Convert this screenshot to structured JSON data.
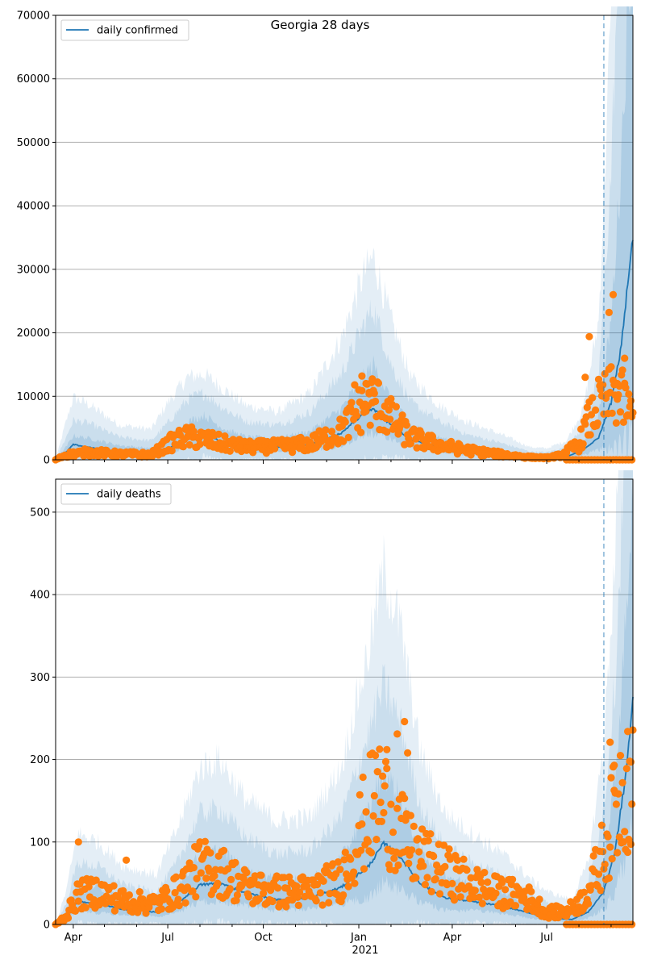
{
  "figure_title": "Georgia 28 days",
  "colors": {
    "model_line": "#1f77b4",
    "band": "#1f77b4",
    "observed": "#ff7f0e",
    "forecast_line": "#1f77b4",
    "grid": "#b0b0b0"
  },
  "chart_data": [
    {
      "type": "line",
      "legend": "daily confirmed",
      "legend_position": "top-left",
      "grid": "horizontal",
      "x_start": "2020-03-15",
      "x_end": "2021-09-22",
      "forecast_date": "2021-08-25",
      "ylim": [
        0,
        70000
      ],
      "yticks": [
        "0",
        "10000",
        "20000",
        "30000",
        "40000",
        "50000",
        "60000",
        "70000"
      ],
      "anchors": {
        "dates": [
          "2020-03-15",
          "2020-03-25",
          "2020-04-01",
          "2020-04-15",
          "2020-05-15",
          "2020-06-15",
          "2020-07-01",
          "2020-07-20",
          "2020-08-05",
          "2020-08-25",
          "2020-09-15",
          "2020-10-15",
          "2020-11-15",
          "2020-12-15",
          "2021-01-05",
          "2021-01-15",
          "2021-02-01",
          "2021-02-20",
          "2021-03-20",
          "2021-04-15",
          "2021-05-15",
          "2021-06-15",
          "2021-07-01",
          "2021-07-20",
          "2021-08-05",
          "2021-08-20",
          "2021-09-01",
          "2021-09-10",
          "2021-09-22"
        ],
        "median": [
          0,
          1200,
          2400,
          2000,
          1200,
          900,
          1800,
          3300,
          4000,
          2700,
          2100,
          2000,
          2400,
          4200,
          7200,
          8000,
          5500,
          3200,
          2000,
          1300,
          900,
          300,
          350,
          500,
          1500,
          3500,
          9000,
          17000,
          35000
        ],
        "band50": [
          0,
          2000,
          3800,
          3400,
          2300,
          1800,
          3400,
          6000,
          7000,
          4800,
          3600,
          3400,
          4500,
          8000,
          13000,
          15000,
          9500,
          5500,
          3500,
          2400,
          1600,
          700,
          700,
          1100,
          2800,
          7000,
          22000,
          45000,
          90000
        ],
        "band80": [
          0,
          3500,
          6200,
          5800,
          3600,
          3000,
          5800,
          9500,
          10500,
          8000,
          6000,
          5500,
          7500,
          13500,
          21000,
          24000,
          15000,
          9000,
          6000,
          4000,
          2800,
          1300,
          1200,
          2000,
          5000,
          13000,
          45000,
          90000,
          150000
        ],
        "band95": [
          0,
          6000,
          9800,
          8800,
          5500,
          4800,
          9000,
          13000,
          13500,
          11000,
          8500,
          7500,
          10500,
          19000,
          29000,
          32000,
          22000,
          13000,
          8500,
          6000,
          4200,
          2000,
          1800,
          3000,
          8000,
          22000,
          70000,
          150000,
          250000
        ]
      },
      "observed_anchors": {
        "dates": [
          "2020-03-15",
          "2020-03-25",
          "2020-04-15",
          "2020-05-15",
          "2020-06-15",
          "2020-07-05",
          "2020-07-20",
          "2020-08-05",
          "2020-08-25",
          "2020-09-15",
          "2020-10-15",
          "2020-11-15",
          "2020-12-15",
          "2021-01-05",
          "2021-01-15",
          "2021-02-01",
          "2021-02-20",
          "2021-03-20",
          "2021-04-15",
          "2021-05-15",
          "2021-06-15",
          "2021-07-01",
          "2021-07-15",
          "2021-08-01",
          "2021-08-10",
          "2021-08-20",
          "2021-09-01",
          "2021-09-10",
          "2021-09-22"
        ],
        "values": [
          0,
          800,
          1200,
          900,
          800,
          2800,
          3600,
          3200,
          2500,
          2000,
          2100,
          2500,
          4500,
          8500,
          9500,
          6500,
          3500,
          2300,
          1500,
          900,
          400,
          300,
          700,
          2500,
          6000,
          8500,
          10000,
          10000,
          6500
        ]
      },
      "spike_points": [
        [
          "2020-12-28",
          11800
        ],
        [
          "2021-01-04",
          13200
        ],
        [
          "2021-01-08",
          12000
        ],
        [
          "2021-01-11",
          10400
        ],
        [
          "2021-01-14",
          9000
        ],
        [
          "2021-08-07",
          13000
        ],
        [
          "2021-08-11",
          19400
        ],
        [
          "2021-08-30",
          23200
        ],
        [
          "2021-09-03",
          26000
        ],
        [
          "2021-09-07",
          12000
        ],
        [
          "2021-09-14",
          16000
        ]
      ],
      "zero_range": [
        "2021-07-20",
        "2021-09-22"
      ]
    },
    {
      "type": "line",
      "legend": "daily deaths",
      "legend_position": "top-left",
      "grid": "horizontal",
      "x_start": "2020-03-15",
      "x_end": "2021-09-22",
      "forecast_date": "2021-08-25",
      "ylim": [
        0,
        540
      ],
      "yticks": [
        "0",
        "100",
        "200",
        "300",
        "400",
        "500"
      ],
      "xticks": [
        "Apr",
        "Jul",
        "Oct",
        "Jan",
        "Apr",
        "Jul"
      ],
      "xtick_dates": [
        "2020-04-01",
        "2020-07-01",
        "2020-10-01",
        "2021-01-01",
        "2021-04-01",
        "2021-07-01"
      ],
      "xlabel_year": "2021",
      "anchors": {
        "dates": [
          "2020-03-15",
          "2020-03-25",
          "2020-04-05",
          "2020-04-25",
          "2020-05-20",
          "2020-06-20",
          "2020-07-10",
          "2020-08-01",
          "2020-08-20",
          "2020-09-15",
          "2020-10-15",
          "2020-11-15",
          "2020-12-15",
          "2021-01-10",
          "2021-01-25",
          "2021-02-10",
          "2021-03-01",
          "2021-03-25",
          "2021-04-20",
          "2021-05-20",
          "2021-06-20",
          "2021-07-05",
          "2021-07-25",
          "2021-08-10",
          "2021-08-25",
          "2021-09-05",
          "2021-09-15",
          "2021-09-22"
        ],
        "median": [
          0,
          8,
          28,
          25,
          18,
          15,
          25,
          48,
          50,
          38,
          30,
          32,
          45,
          70,
          98,
          82,
          50,
          32,
          28,
          22,
          12,
          8,
          6,
          15,
          40,
          90,
          180,
          270
        ],
        "band50": [
          0,
          15,
          48,
          45,
          30,
          25,
          45,
          85,
          90,
          65,
          55,
          55,
          80,
          140,
          185,
          155,
          90,
          60,
          48,
          38,
          22,
          15,
          12,
          28,
          80,
          180,
          360,
          540
        ],
        "band80": [
          0,
          25,
          75,
          70,
          48,
          40,
          75,
          135,
          140,
          105,
          85,
          90,
          130,
          230,
          290,
          245,
          145,
          95,
          75,
          60,
          35,
          25,
          20,
          50,
          140,
          300,
          600,
          900
        ],
        "band95": [
          0,
          40,
          110,
          100,
          70,
          60,
          115,
          190,
          200,
          150,
          125,
          130,
          190,
          330,
          430,
          360,
          210,
          135,
          110,
          85,
          50,
          38,
          30,
          75,
          220,
          450,
          900,
          1300
        ]
      },
      "observed_anchors": {
        "dates": [
          "2020-03-15",
          "2020-03-25",
          "2020-04-05",
          "2020-04-25",
          "2020-05-20",
          "2020-06-20",
          "2020-07-10",
          "2020-08-01",
          "2020-08-20",
          "2020-09-15",
          "2020-10-15",
          "2020-11-15",
          "2020-12-15",
          "2021-01-05",
          "2021-01-20",
          "2021-02-05",
          "2021-02-20",
          "2021-03-15",
          "2021-04-10",
          "2021-05-10",
          "2021-06-10",
          "2021-07-01",
          "2021-07-20",
          "2021-08-05",
          "2021-08-20",
          "2021-09-01",
          "2021-09-10",
          "2021-09-22"
        ],
        "values": [
          0,
          10,
          35,
          40,
          28,
          25,
          40,
          70,
          65,
          45,
          40,
          40,
          55,
          120,
          160,
          120,
          90,
          70,
          55,
          40,
          35,
          15,
          15,
          30,
          70,
          120,
          160,
          175
        ]
      },
      "spike_points": [
        [
          "2020-04-06",
          100
        ],
        [
          "2020-05-22",
          78
        ],
        [
          "2021-02-07",
          231
        ],
        [
          "2021-02-14",
          246
        ],
        [
          "2021-02-17",
          208
        ],
        [
          "2021-01-28",
          212
        ],
        [
          "2021-08-31",
          221
        ],
        [
          "2021-09-04",
          193
        ],
        [
          "2021-09-17",
          234
        ],
        [
          "2021-09-20",
          197
        ]
      ],
      "zero_range": [
        "2021-07-20",
        "2021-09-22"
      ]
    }
  ]
}
